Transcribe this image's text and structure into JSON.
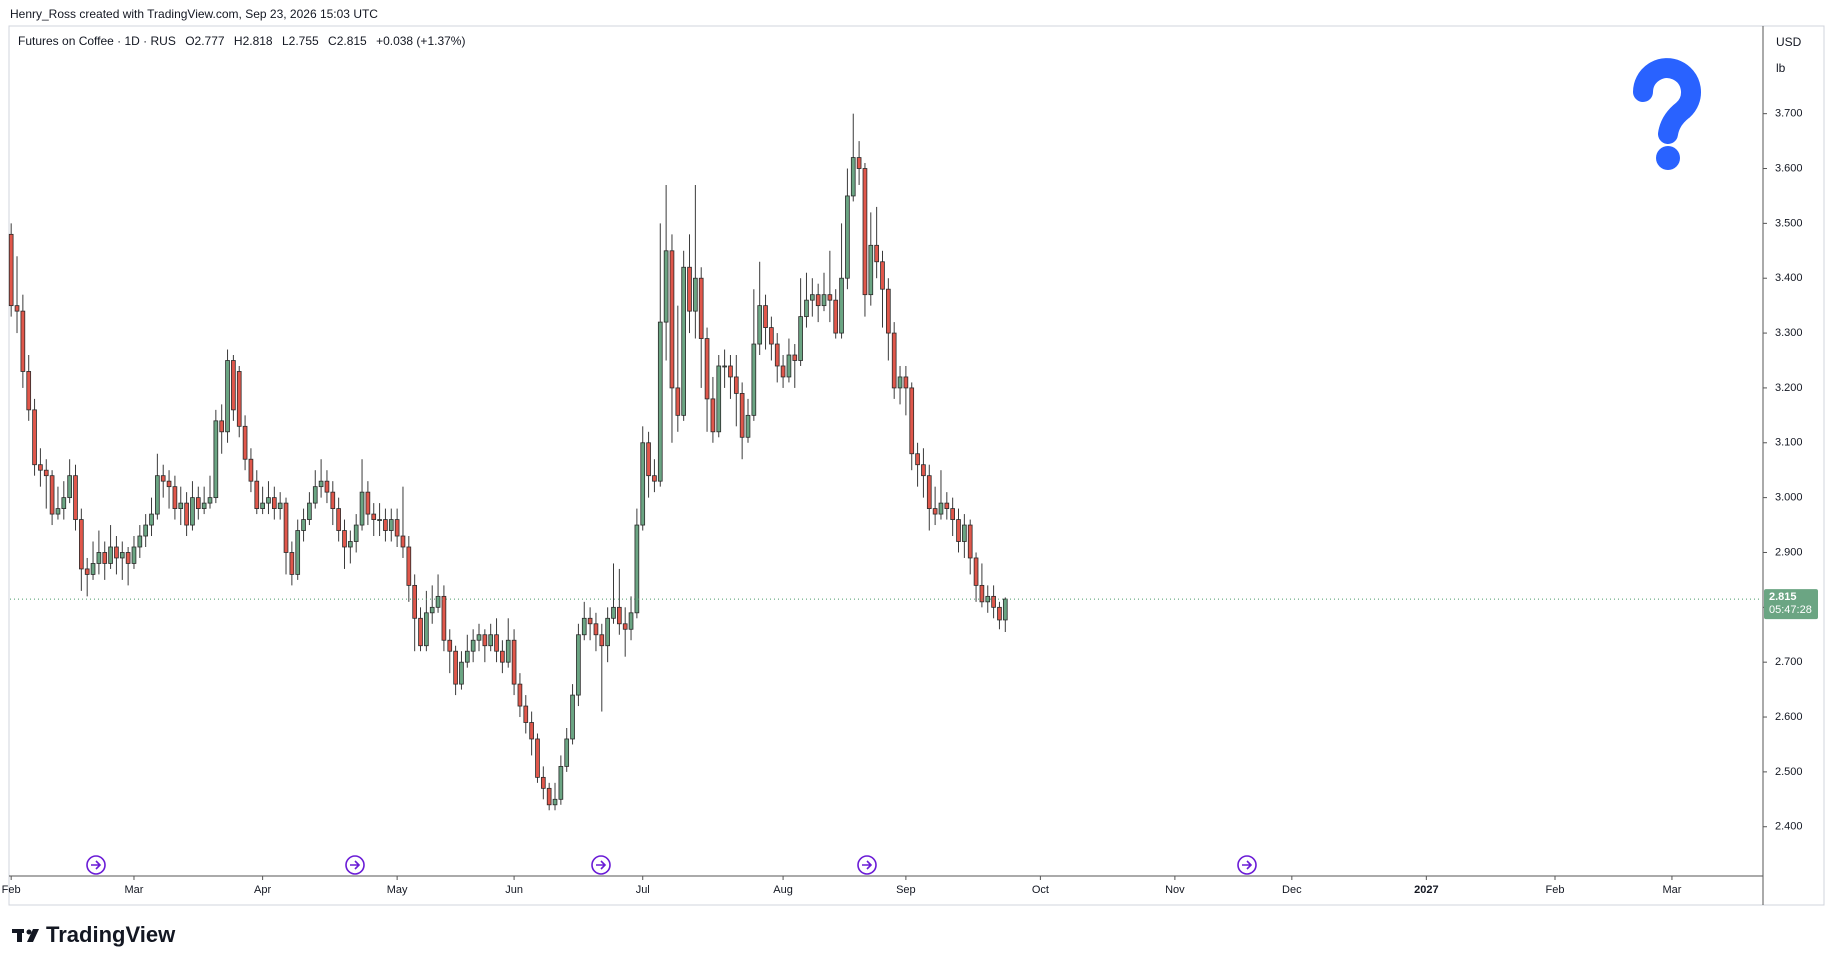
{
  "header": "Henry_Ross created with TradingView.com, Sep 23, 2026 15:03 UTC",
  "chart_data": {
    "type": "candlestick",
    "symbol": "Futures on Coffee · 1D · RUS",
    "legend_labels": [
      "O",
      "H",
      "L",
      "C"
    ],
    "change_label": "+0.038 (+1.37%)",
    "currency": "USD",
    "unit": "lb",
    "countdown": "05:47:28",
    "up_color": "#6ba583",
    "down_color": "#e0574b",
    "xlim": [
      -0.2,
      299.4
    ],
    "xticks": [
      {
        "value": 0,
        "label": "Feb"
      },
      {
        "value": 21,
        "label": "Mar"
      },
      {
        "value": 43,
        "label": "Apr"
      },
      {
        "value": 66,
        "label": "May"
      },
      {
        "value": 86,
        "label": "Jun"
      },
      {
        "value": 108,
        "label": "Jul"
      },
      {
        "value": 132,
        "label": "Aug"
      },
      {
        "value": 153,
        "label": "Sep"
      },
      {
        "value": 176,
        "label": "Oct"
      },
      {
        "value": 199,
        "label": "Nov"
      },
      {
        "value": 219,
        "label": "Dec"
      },
      {
        "value": 242,
        "label": "2027"
      },
      {
        "value": 264,
        "label": "Feb"
      },
      {
        "value": 284,
        "label": "Mar"
      }
    ],
    "ylim": [
      2.312,
      3.858
    ],
    "yticks": [
      {
        "value": 2.4,
        "label": "2.400"
      },
      {
        "value": 2.5,
        "label": "2.500"
      },
      {
        "value": 2.6,
        "label": "2.600"
      },
      {
        "value": 2.7,
        "label": "2.700"
      },
      {
        "value": 2.8,
        "label": "2.800"
      },
      {
        "value": 2.9,
        "label": "2.900"
      },
      {
        "value": 3.0,
        "label": "3.000"
      },
      {
        "value": 3.1,
        "label": "3.100"
      },
      {
        "value": 3.2,
        "label": "3.200"
      },
      {
        "value": 3.3,
        "label": "3.300"
      },
      {
        "value": 3.4,
        "label": "3.400"
      },
      {
        "value": 3.5,
        "label": "3.500"
      },
      {
        "value": 3.6,
        "label": "3.600"
      },
      {
        "value": 3.7,
        "label": "3.700"
      }
    ],
    "ohlc": [
      [
        3.48,
        3.5,
        3.33,
        3.35
      ],
      [
        3.35,
        3.44,
        3.3,
        3.34
      ],
      [
        3.34,
        3.37,
        3.2,
        3.23
      ],
      [
        3.23,
        3.26,
        3.14,
        3.16
      ],
      [
        3.16,
        3.18,
        3.04,
        3.06
      ],
      [
        3.06,
        3.09,
        3.02,
        3.05
      ],
      [
        3.05,
        3.07,
        2.98,
        3.04
      ],
      [
        3.04,
        3.05,
        2.95,
        2.97
      ],
      [
        2.97,
        3.02,
        2.96,
        2.98
      ],
      [
        2.98,
        3.03,
        2.96,
        3.0
      ],
      [
        3.0,
        3.07,
        2.99,
        3.04
      ],
      [
        3.04,
        3.06,
        2.94,
        2.96
      ],
      [
        2.96,
        2.98,
        2.83,
        2.87
      ],
      [
        2.87,
        2.89,
        2.82,
        2.86
      ],
      [
        2.86,
        2.92,
        2.85,
        2.88
      ],
      [
        2.88,
        2.94,
        2.86,
        2.9
      ],
      [
        2.9,
        2.92,
        2.85,
        2.88
      ],
      [
        2.88,
        2.95,
        2.87,
        2.91
      ],
      [
        2.91,
        2.93,
        2.86,
        2.89
      ],
      [
        2.89,
        2.92,
        2.85,
        2.9
      ],
      [
        2.9,
        2.91,
        2.84,
        2.88
      ],
      [
        2.88,
        2.93,
        2.87,
        2.91
      ],
      [
        2.91,
        2.95,
        2.89,
        2.93
      ],
      [
        2.93,
        2.97,
        2.91,
        2.95
      ],
      [
        2.95,
        3.0,
        2.93,
        2.97
      ],
      [
        2.97,
        3.08,
        2.96,
        3.04
      ],
      [
        3.04,
        3.06,
        3.0,
        3.03
      ],
      [
        3.03,
        3.05,
        2.98,
        3.02
      ],
      [
        3.02,
        3.04,
        2.96,
        2.98
      ],
      [
        2.98,
        3.02,
        2.95,
        2.99
      ],
      [
        2.99,
        3.01,
        2.93,
        2.95
      ],
      [
        2.95,
        3.03,
        2.94,
        3.0
      ],
      [
        3.0,
        3.02,
        2.96,
        2.98
      ],
      [
        2.98,
        3.02,
        2.97,
        2.99
      ],
      [
        2.99,
        3.04,
        2.98,
        3.0
      ],
      [
        3.0,
        3.16,
        2.99,
        3.14
      ],
      [
        3.14,
        3.17,
        3.08,
        3.12
      ],
      [
        3.12,
        3.27,
        3.1,
        3.25
      ],
      [
        3.25,
        3.26,
        3.14,
        3.16
      ],
      [
        3.23,
        3.24,
        3.11,
        3.13
      ],
      [
        3.13,
        3.15,
        3.05,
        3.07
      ],
      [
        3.07,
        3.09,
        3.01,
        3.03
      ],
      [
        3.03,
        3.05,
        2.97,
        2.98
      ],
      [
        2.98,
        3.02,
        2.97,
        2.99
      ],
      [
        2.99,
        3.03,
        2.97,
        3.0
      ],
      [
        3.0,
        3.02,
        2.96,
        2.98
      ],
      [
        2.98,
        3.01,
        2.96,
        2.99
      ],
      [
        2.99,
        3.0,
        2.86,
        2.9
      ],
      [
        2.9,
        2.92,
        2.84,
        2.86
      ],
      [
        2.86,
        2.96,
        2.85,
        2.94
      ],
      [
        2.94,
        2.98,
        2.92,
        2.96
      ],
      [
        2.96,
        3.01,
        2.95,
        2.99
      ],
      [
        2.99,
        3.05,
        2.98,
        3.02
      ],
      [
        3.02,
        3.07,
        3.0,
        3.03
      ],
      [
        3.03,
        3.05,
        2.99,
        3.01
      ],
      [
        3.01,
        3.03,
        2.95,
        2.98
      ],
      [
        2.98,
        3.0,
        2.92,
        2.94
      ],
      [
        2.94,
        2.96,
        2.87,
        2.91
      ],
      [
        2.91,
        2.94,
        2.88,
        2.92
      ],
      [
        2.92,
        2.97,
        2.9,
        2.95
      ],
      [
        2.95,
        3.07,
        2.94,
        3.01
      ],
      [
        3.01,
        3.03,
        2.95,
        2.97
      ],
      [
        2.97,
        2.99,
        2.93,
        2.96
      ],
      [
        2.96,
        2.99,
        2.93,
        2.96
      ],
      [
        2.96,
        2.98,
        2.92,
        2.94
      ],
      [
        2.94,
        2.98,
        2.92,
        2.96
      ],
      [
        2.96,
        2.98,
        2.91,
        2.93
      ],
      [
        2.93,
        3.02,
        2.89,
        2.91
      ],
      [
        2.91,
        2.93,
        2.81,
        2.84
      ],
      [
        2.84,
        2.86,
        2.72,
        2.78
      ],
      [
        2.78,
        2.8,
        2.72,
        2.73
      ],
      [
        2.73,
        2.83,
        2.72,
        2.79
      ],
      [
        2.79,
        2.84,
        2.77,
        2.8
      ],
      [
        2.8,
        2.86,
        2.79,
        2.82
      ],
      [
        2.82,
        2.84,
        2.72,
        2.74
      ],
      [
        2.74,
        2.76,
        2.68,
        2.72
      ],
      [
        2.72,
        2.73,
        2.64,
        2.66
      ],
      [
        2.66,
        2.72,
        2.65,
        2.7
      ],
      [
        2.7,
        2.75,
        2.69,
        2.72
      ],
      [
        2.72,
        2.76,
        2.7,
        2.74
      ],
      [
        2.74,
        2.77,
        2.72,
        2.75
      ],
      [
        2.75,
        2.76,
        2.7,
        2.73
      ],
      [
        2.73,
        2.77,
        2.72,
        2.75
      ],
      [
        2.75,
        2.78,
        2.7,
        2.72
      ],
      [
        2.72,
        2.74,
        2.68,
        2.7
      ],
      [
        2.7,
        2.78,
        2.69,
        2.74
      ],
      [
        2.74,
        2.76,
        2.64,
        2.66
      ],
      [
        2.66,
        2.68,
        2.6,
        2.62
      ],
      [
        2.62,
        2.64,
        2.57,
        2.59
      ],
      [
        2.59,
        2.61,
        2.53,
        2.56
      ],
      [
        2.56,
        2.57,
        2.48,
        2.49
      ],
      [
        2.49,
        2.51,
        2.45,
        2.47
      ],
      [
        2.47,
        2.48,
        2.43,
        2.44
      ],
      [
        2.44,
        2.48,
        2.43,
        2.45
      ],
      [
        2.45,
        2.53,
        2.44,
        2.51
      ],
      [
        2.51,
        2.58,
        2.5,
        2.56
      ],
      [
        2.56,
        2.66,
        2.55,
        2.64
      ],
      [
        2.64,
        2.77,
        2.62,
        2.75
      ],
      [
        2.75,
        2.81,
        2.74,
        2.78
      ],
      [
        2.78,
        2.8,
        2.74,
        2.77
      ],
      [
        2.77,
        2.79,
        2.72,
        2.75
      ],
      [
        2.75,
        2.77,
        2.61,
        2.73
      ],
      [
        2.73,
        2.8,
        2.7,
        2.78
      ],
      [
        2.78,
        2.88,
        2.77,
        2.8
      ],
      [
        2.8,
        2.87,
        2.75,
        2.77
      ],
      [
        2.77,
        2.8,
        2.71,
        2.76
      ],
      [
        2.76,
        2.82,
        2.74,
        2.79
      ],
      [
        2.79,
        2.98,
        2.78,
        2.95
      ],
      [
        2.95,
        3.13,
        2.94,
        3.1
      ],
      [
        3.1,
        3.12,
        3.0,
        3.04
      ],
      [
        3.04,
        3.07,
        3.01,
        3.03
      ],
      [
        3.03,
        3.5,
        3.02,
        3.32
      ],
      [
        3.32,
        3.57,
        3.25,
        3.45
      ],
      [
        3.45,
        3.48,
        3.1,
        3.2
      ],
      [
        3.2,
        3.35,
        3.12,
        3.15
      ],
      [
        3.15,
        3.45,
        3.14,
        3.42
      ],
      [
        3.42,
        3.48,
        3.3,
        3.34
      ],
      [
        3.34,
        3.57,
        3.29,
        3.4
      ],
      [
        3.4,
        3.42,
        3.2,
        3.29
      ],
      [
        3.29,
        3.31,
        3.12,
        3.18
      ],
      [
        3.18,
        3.22,
        3.1,
        3.12
      ],
      [
        3.12,
        3.26,
        3.11,
        3.24
      ],
      [
        3.24,
        3.27,
        3.2,
        3.24
      ],
      [
        3.24,
        3.26,
        3.18,
        3.22
      ],
      [
        3.22,
        3.26,
        3.13,
        3.19
      ],
      [
        3.19,
        3.21,
        3.07,
        3.11
      ],
      [
        3.11,
        3.18,
        3.1,
        3.15
      ],
      [
        3.15,
        3.38,
        3.14,
        3.28
      ],
      [
        3.28,
        3.43,
        3.26,
        3.35
      ],
      [
        3.35,
        3.37,
        3.27,
        3.31
      ],
      [
        3.31,
        3.33,
        3.25,
        3.28
      ],
      [
        3.28,
        3.3,
        3.21,
        3.24
      ],
      [
        3.24,
        3.26,
        3.2,
        3.22
      ],
      [
        3.22,
        3.29,
        3.21,
        3.26
      ],
      [
        3.26,
        3.28,
        3.2,
        3.25
      ],
      [
        3.25,
        3.4,
        3.24,
        3.33
      ],
      [
        3.33,
        3.41,
        3.31,
        3.36
      ],
      [
        3.36,
        3.4,
        3.33,
        3.37
      ],
      [
        3.37,
        3.39,
        3.32,
        3.35
      ],
      [
        3.35,
        3.41,
        3.34,
        3.37
      ],
      [
        3.37,
        3.45,
        3.32,
        3.36
      ],
      [
        3.36,
        3.38,
        3.29,
        3.3
      ],
      [
        3.3,
        3.5,
        3.29,
        3.4
      ],
      [
        3.4,
        3.6,
        3.38,
        3.55
      ],
      [
        3.55,
        3.7,
        3.54,
        3.62
      ],
      [
        3.62,
        3.65,
        3.57,
        3.6
      ],
      [
        3.6,
        3.61,
        3.33,
        3.37
      ],
      [
        3.37,
        3.52,
        3.35,
        3.46
      ],
      [
        3.46,
        3.53,
        3.4,
        3.43
      ],
      [
        3.43,
        3.45,
        3.31,
        3.38
      ],
      [
        3.38,
        3.4,
        3.25,
        3.3
      ],
      [
        3.3,
        3.32,
        3.18,
        3.2
      ],
      [
        3.2,
        3.24,
        3.17,
        3.22
      ],
      [
        3.22,
        3.24,
        3.15,
        3.2
      ],
      [
        3.2,
        3.21,
        3.05,
        3.08
      ],
      [
        3.08,
        3.1,
        3.02,
        3.06
      ],
      [
        3.06,
        3.09,
        3.0,
        3.04
      ],
      [
        3.04,
        3.06,
        2.94,
        2.98
      ],
      [
        2.98,
        3.02,
        2.95,
        2.97
      ],
      [
        2.97,
        3.05,
        2.96,
        2.99
      ],
      [
        2.99,
        3.01,
        2.96,
        2.98
      ],
      [
        2.98,
        3.0,
        2.93,
        2.96
      ],
      [
        2.96,
        2.98,
        2.9,
        2.92
      ],
      [
        2.92,
        2.97,
        2.89,
        2.95
      ],
      [
        2.95,
        2.96,
        2.86,
        2.89
      ],
      [
        2.89,
        2.9,
        2.81,
        2.84
      ],
      [
        2.84,
        2.88,
        2.8,
        2.81
      ],
      [
        2.81,
        2.84,
        2.79,
        2.82
      ],
      [
        2.82,
        2.84,
        2.78,
        2.8
      ],
      [
        2.8,
        2.81,
        2.76,
        2.777
      ],
      [
        2.777,
        2.818,
        2.755,
        2.815
      ]
    ]
  },
  "logo": "TradingView"
}
